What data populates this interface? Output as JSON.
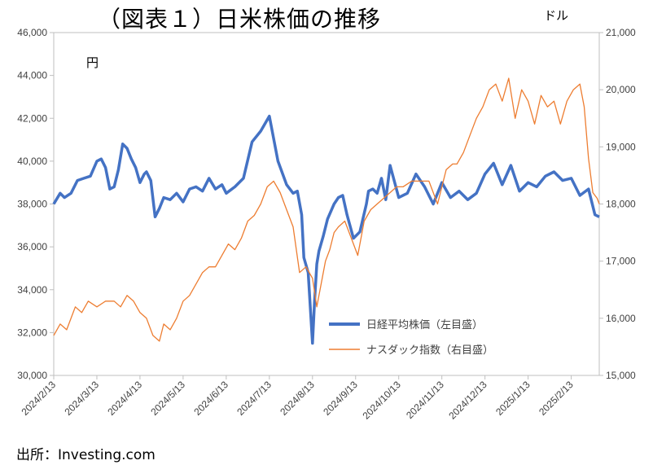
{
  "chart_data": {
    "type": "line",
    "title": "（図表１）日米株価の推移",
    "left_axis_label": "円",
    "right_axis_label": "ドル",
    "source": "出所：Investing.com",
    "left_ylim": [
      30000,
      46000
    ],
    "left_ticks": [
      30000,
      32000,
      34000,
      36000,
      38000,
      40000,
      42000,
      44000,
      46000
    ],
    "left_tick_labels": [
      "30,000",
      "32,000",
      "34,000",
      "36,000",
      "38,000",
      "40,000",
      "42,000",
      "44,000",
      "46,000"
    ],
    "right_ylim": [
      15000,
      21000
    ],
    "right_ticks": [
      15000,
      16000,
      17000,
      18000,
      19000,
      20000,
      21000
    ],
    "right_tick_labels": [
      "15,000",
      "16,000",
      "17,000",
      "18,000",
      "19,000",
      "20,000",
      "21,000"
    ],
    "x_tick_labels": [
      "2024/2/13",
      "2024/3/13",
      "2024/4/13",
      "2024/5/13",
      "2024/6/13",
      "2024/7/13",
      "2024/8/13",
      "2024/9/13",
      "2024/10/13",
      "2024/11/13",
      "2024/12/13",
      "2025/1/13",
      "2025/2/13"
    ],
    "x_range_months": [
      0,
      12.65
    ],
    "legend_location": "lower-right",
    "series": [
      {
        "name": "日経平均株価（左目盛）",
        "axis": "left",
        "color": "#4472C4",
        "x": [
          0.0,
          0.15,
          0.25,
          0.4,
          0.55,
          0.7,
          0.85,
          1.0,
          1.1,
          1.2,
          1.3,
          1.4,
          1.5,
          1.6,
          1.7,
          1.8,
          1.9,
          2.0,
          2.1,
          2.15,
          2.25,
          2.35,
          2.45,
          2.55,
          2.7,
          2.85,
          3.0,
          3.15,
          3.3,
          3.45,
          3.6,
          3.75,
          3.9,
          4.0,
          4.2,
          4.4,
          4.6,
          4.8,
          5.0,
          5.2,
          5.4,
          5.55,
          5.65,
          5.75,
          5.8,
          5.9,
          6.0,
          6.05,
          6.1,
          6.15,
          6.25,
          6.35,
          6.5,
          6.6,
          6.7,
          6.8,
          6.95,
          7.1,
          7.25,
          7.3,
          7.4,
          7.5,
          7.6,
          7.7,
          7.8,
          8.0,
          8.2,
          8.4,
          8.6,
          8.8,
          9.0,
          9.2,
          9.4,
          9.6,
          9.8,
          10.0,
          10.2,
          10.4,
          10.6,
          10.8,
          11.0,
          11.2,
          11.4,
          11.6,
          11.8,
          12.0,
          12.2,
          12.4,
          12.55,
          12.65
        ],
        "values": [
          38000,
          38500,
          38300,
          38500,
          39100,
          39200,
          39300,
          40000,
          40100,
          39700,
          38700,
          38800,
          39600,
          40800,
          40600,
          40100,
          39700,
          39000,
          39400,
          39500,
          39100,
          37400,
          37800,
          38300,
          38200,
          38500,
          38100,
          38700,
          38800,
          38600,
          39200,
          38700,
          38900,
          38500,
          38800,
          39200,
          40900,
          41400,
          42100,
          40000,
          38900,
          38500,
          38600,
          37500,
          35500,
          34800,
          31500,
          33500,
          35200,
          35800,
          36500,
          37300,
          38000,
          38300,
          38400,
          37500,
          36400,
          36700,
          38000,
          38600,
          38700,
          38500,
          39200,
          38200,
          39800,
          38300,
          38500,
          39400,
          38800,
          38000,
          39000,
          38300,
          38600,
          38200,
          38500,
          39400,
          39900,
          38900,
          39800,
          38600,
          39000,
          38800,
          39300,
          39500,
          39100,
          39200,
          38400,
          38700,
          37500,
          37400
        ]
      },
      {
        "name": "ナスダック指数（右目盛）",
        "axis": "right",
        "color": "#ED7D31",
        "x": [
          0.0,
          0.15,
          0.3,
          0.5,
          0.65,
          0.8,
          1.0,
          1.2,
          1.4,
          1.55,
          1.7,
          1.85,
          2.0,
          2.15,
          2.3,
          2.45,
          2.55,
          2.7,
          2.85,
          3.0,
          3.15,
          3.3,
          3.45,
          3.6,
          3.75,
          3.9,
          4.05,
          4.2,
          4.35,
          4.5,
          4.65,
          4.8,
          4.95,
          5.1,
          5.25,
          5.4,
          5.55,
          5.7,
          5.85,
          6.0,
          6.1,
          6.2,
          6.3,
          6.4,
          6.5,
          6.6,
          6.75,
          6.9,
          7.05,
          7.2,
          7.35,
          7.5,
          7.65,
          7.8,
          7.95,
          8.1,
          8.3,
          8.5,
          8.7,
          8.9,
          9.1,
          9.25,
          9.35,
          9.5,
          9.65,
          9.8,
          9.95,
          10.1,
          10.25,
          10.4,
          10.55,
          10.7,
          10.85,
          11.0,
          11.15,
          11.3,
          11.45,
          11.6,
          11.75,
          11.9,
          12.05,
          12.2,
          12.3,
          12.4,
          12.5,
          12.6,
          12.65
        ],
        "values": [
          15700,
          15900,
          15800,
          16200,
          16100,
          16300,
          16200,
          16300,
          16300,
          16200,
          16400,
          16300,
          16100,
          16000,
          15700,
          15600,
          15900,
          15800,
          16000,
          16300,
          16400,
          16600,
          16800,
          16900,
          16900,
          17100,
          17300,
          17200,
          17400,
          17700,
          17800,
          18000,
          18300,
          18400,
          18200,
          17900,
          17600,
          16800,
          16900,
          16700,
          16200,
          16600,
          17000,
          17200,
          17500,
          17600,
          17700,
          17400,
          17100,
          17700,
          17900,
          18000,
          18100,
          18200,
          18300,
          18300,
          18400,
          18400,
          18400,
          18000,
          18600,
          18700,
          18700,
          18900,
          19200,
          19500,
          19700,
          20000,
          20100,
          19800,
          20200,
          19500,
          20000,
          19800,
          19400,
          19900,
          19700,
          19800,
          19400,
          19800,
          20000,
          20100,
          19700,
          18800,
          18200,
          18100,
          18000
        ]
      }
    ]
  }
}
